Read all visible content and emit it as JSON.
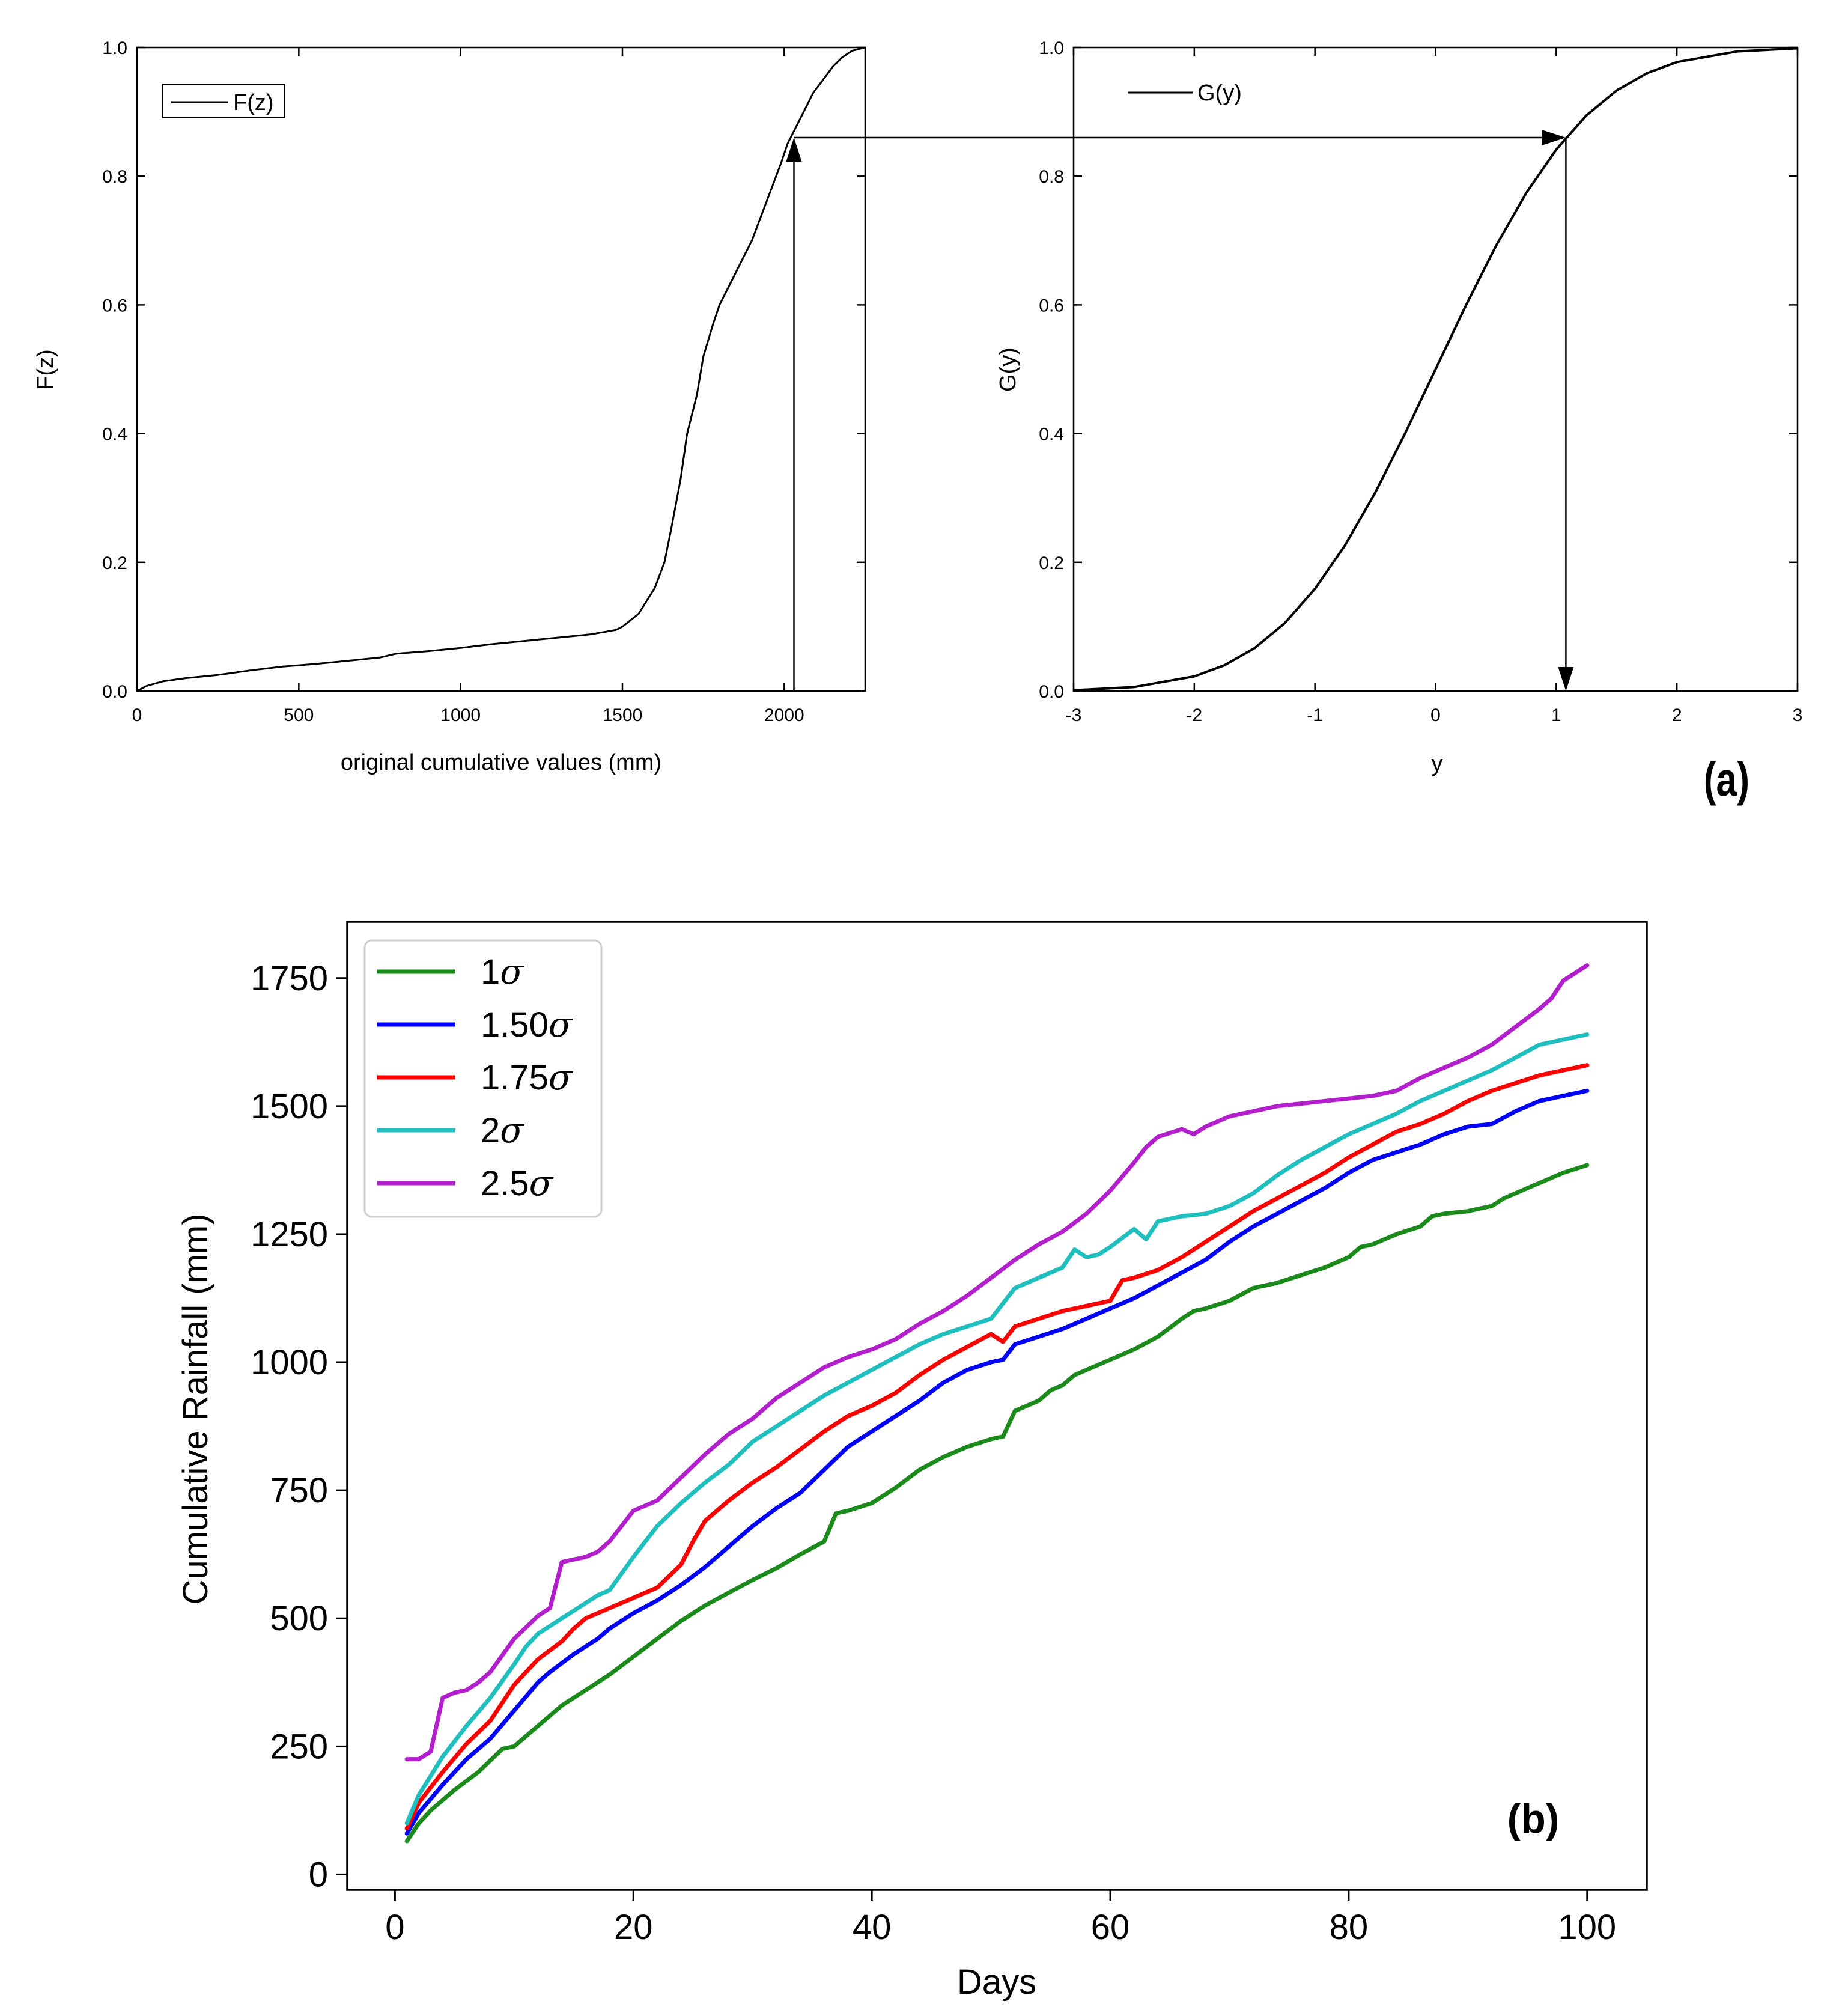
{
  "chart_data": [
    {
      "type": "line",
      "panel": "a-left",
      "xlabel": "original cumulative values (mm)",
      "ylabel": "F(z)",
      "xlim": [
        0,
        2250
      ],
      "ylim": [
        0,
        1.0
      ],
      "xticks": [
        "0",
        "500",
        "1000",
        "1500",
        "2000"
      ],
      "yticks": [
        "0.0",
        "0.2",
        "0.4",
        "0.6",
        "0.8",
        "1.0"
      ],
      "legend": "top-left",
      "series": [
        {
          "name": "F(z)",
          "color": "#000000",
          "x": [
            0,
            30,
            80,
            150,
            250,
            350,
            450,
            550,
            650,
            750,
            800,
            900,
            1000,
            1100,
            1200,
            1300,
            1400,
            1480,
            1500,
            1550,
            1600,
            1630,
            1650,
            1680,
            1700,
            1730,
            1750,
            1780,
            1800,
            1830,
            1860,
            1900,
            1930,
            1960,
            1990,
            2010,
            2030,
            2060,
            2090,
            2120,
            2150,
            2180,
            2210,
            2250
          ],
          "y": [
            0.0,
            0.008,
            0.015,
            0.02,
            0.025,
            0.032,
            0.038,
            0.042,
            0.047,
            0.052,
            0.058,
            0.062,
            0.067,
            0.073,
            0.078,
            0.083,
            0.088,
            0.095,
            0.1,
            0.12,
            0.16,
            0.2,
            0.25,
            0.33,
            0.4,
            0.46,
            0.52,
            0.57,
            0.6,
            0.63,
            0.66,
            0.7,
            0.74,
            0.78,
            0.82,
            0.85,
            0.87,
            0.9,
            0.93,
            0.95,
            0.97,
            0.985,
            0.995,
            1.0
          ]
        }
      ],
      "annotation_x": 2030,
      "annotation_level": 0.86
    },
    {
      "type": "line",
      "panel": "a-right",
      "xlabel": "y",
      "ylabel": "G(y)",
      "xlim": [
        -3,
        3
      ],
      "ylim": [
        0,
        1.0
      ],
      "xticks": [
        "-3",
        "-2",
        "-1",
        "0",
        "1",
        "2",
        "3"
      ],
      "yticks": [
        "0.0",
        "0.2",
        "0.4",
        "0.6",
        "0.8",
        "1.0"
      ],
      "legend": "top-left",
      "series": [
        {
          "name": "G(y)",
          "color": "#000000",
          "x": [
            -3.0,
            -2.5,
            -2.0,
            -1.75,
            -1.5,
            -1.25,
            -1.0,
            -0.75,
            -0.5,
            -0.25,
            0.0,
            0.25,
            0.5,
            0.75,
            1.0,
            1.25,
            1.5,
            1.75,
            2.0,
            2.5,
            3.0
          ],
          "y": [
            0.0013,
            0.0062,
            0.0228,
            0.0401,
            0.0668,
            0.1056,
            0.1587,
            0.2266,
            0.3085,
            0.4013,
            0.5,
            0.5987,
            0.6915,
            0.7734,
            0.8413,
            0.8944,
            0.9332,
            0.9599,
            0.9772,
            0.9938,
            0.9987
          ]
        }
      ],
      "annotation_x": 1.08,
      "annotation_level": 0.86
    },
    {
      "type": "line",
      "panel": "b",
      "xlabel": "Days",
      "ylabel": "Cumulative Rainfall (mm)",
      "xlim": [
        -4,
        105
      ],
      "ylim": [
        -30,
        1860
      ],
      "xticks": [
        "0",
        "20",
        "40",
        "60",
        "80",
        "100"
      ],
      "yticks": [
        "0",
        "250",
        "500",
        "750",
        "1000",
        "1250",
        "1500",
        "1750"
      ],
      "legend": "top-left",
      "series": [
        {
          "name": "1σ",
          "label_main": "1",
          "color": "#1a8a1a",
          "x": [
            1,
            2,
            3,
            5,
            7,
            9,
            10,
            12,
            14,
            16,
            18,
            20,
            22,
            24,
            26,
            28,
            30,
            32,
            34,
            36,
            37,
            38,
            40,
            42,
            44,
            46,
            48,
            50,
            51,
            52,
            54,
            55,
            56,
            57,
            58,
            59,
            60,
            62,
            64,
            66,
            67,
            68,
            70,
            72,
            74,
            76,
            78,
            80,
            81,
            82,
            84,
            86,
            87,
            88,
            90,
            92,
            93,
            95,
            97,
            98,
            100
          ],
          "y": [
            65,
            100,
            125,
            165,
            200,
            245,
            250,
            290,
            330,
            360,
            390,
            425,
            460,
            495,
            525,
            550,
            575,
            598,
            625,
            650,
            705,
            710,
            725,
            755,
            790,
            815,
            835,
            850,
            855,
            905,
            925,
            945,
            955,
            975,
            985,
            995,
            1005,
            1025,
            1050,
            1085,
            1100,
            1105,
            1120,
            1145,
            1155,
            1170,
            1185,
            1205,
            1225,
            1230,
            1250,
            1265,
            1285,
            1290,
            1295,
            1305,
            1320,
            1340,
            1360,
            1370,
            1385
          ]
        },
        {
          "name": "1.50σ",
          "label_main": "1.50",
          "color": "#0000ff",
          "x": [
            1,
            2,
            4,
            6,
            8,
            10,
            12,
            13,
            15,
            17,
            18,
            20,
            22,
            24,
            26,
            28,
            30,
            32,
            34,
            36,
            38,
            40,
            42,
            44,
            46,
            48,
            50,
            51,
            52,
            54,
            56,
            58,
            60,
            62,
            64,
            66,
            68,
            70,
            72,
            74,
            76,
            78,
            80,
            82,
            84,
            86,
            88,
            90,
            92,
            94,
            96,
            98,
            100
          ],
          "y": [
            80,
            120,
            175,
            225,
            265,
            320,
            375,
            395,
            430,
            460,
            480,
            510,
            535,
            565,
            600,
            640,
            680,
            715,
            745,
            790,
            835,
            865,
            895,
            925,
            960,
            985,
            1000,
            1005,
            1035,
            1050,
            1065,
            1085,
            1105,
            1125,
            1150,
            1175,
            1200,
            1235,
            1265,
            1290,
            1315,
            1340,
            1370,
            1395,
            1410,
            1425,
            1445,
            1460,
            1465,
            1490,
            1510,
            1520,
            1530
          ]
        },
        {
          "name": "1.75σ",
          "label_main": "1.75",
          "color": "#ff0000",
          "x": [
            1,
            2,
            4,
            6,
            8,
            10,
            12,
            14,
            15,
            16,
            17,
            18,
            20,
            22,
            24,
            25,
            26,
            28,
            30,
            32,
            34,
            36,
            38,
            40,
            42,
            44,
            46,
            48,
            50,
            51,
            52,
            54,
            56,
            58,
            60,
            61,
            62,
            64,
            66,
            68,
            70,
            72,
            74,
            76,
            78,
            80,
            82,
            84,
            86,
            88,
            90,
            92,
            94,
            96,
            98,
            100
          ],
          "y": [
            90,
            140,
            200,
            255,
            300,
            370,
            420,
            455,
            480,
            500,
            510,
            520,
            540,
            560,
            605,
            650,
            690,
            730,
            765,
            795,
            830,
            865,
            895,
            915,
            940,
            975,
            1005,
            1030,
            1055,
            1040,
            1070,
            1085,
            1100,
            1110,
            1120,
            1160,
            1165,
            1180,
            1205,
            1235,
            1265,
            1295,
            1320,
            1345,
            1370,
            1400,
            1425,
            1450,
            1465,
            1485,
            1510,
            1530,
            1545,
            1560,
            1570,
            1580
          ]
        },
        {
          "name": "2σ",
          "label_main": "2",
          "color": "#1fbfbf",
          "x": [
            1,
            2,
            4,
            6,
            8,
            10,
            11,
            12,
            14,
            16,
            17,
            18,
            20,
            22,
            24,
            26,
            28,
            30,
            32,
            34,
            36,
            38,
            40,
            42,
            44,
            46,
            48,
            50,
            51,
            52,
            54,
            56,
            57,
            58,
            59,
            60,
            62,
            63,
            64,
            66,
            68,
            70,
            72,
            74,
            76,
            78,
            80,
            82,
            84,
            86,
            88,
            90,
            92,
            94,
            96,
            98,
            100
          ],
          "y": [
            100,
            155,
            230,
            290,
            345,
            410,
            445,
            470,
            500,
            530,
            545,
            555,
            620,
            680,
            725,
            765,
            800,
            845,
            875,
            905,
            935,
            960,
            985,
            1010,
            1035,
            1055,
            1070,
            1085,
            1115,
            1145,
            1165,
            1185,
            1220,
            1205,
            1210,
            1225,
            1260,
            1240,
            1275,
            1285,
            1290,
            1305,
            1330,
            1365,
            1395,
            1420,
            1445,
            1465,
            1485,
            1510,
            1530,
            1550,
            1570,
            1595,
            1620,
            1630,
            1640
          ]
        },
        {
          "name": "2.5σ",
          "label_main": "2.5",
          "color": "#b31fcc",
          "x": [
            1,
            2,
            3,
            4,
            5,
            6,
            7,
            8,
            10,
            12,
            13,
            14,
            15,
            16,
            17,
            18,
            20,
            22,
            24,
            26,
            28,
            30,
            32,
            34,
            36,
            38,
            40,
            42,
            44,
            46,
            48,
            50,
            52,
            54,
            56,
            58,
            60,
            62,
            63,
            64,
            66,
            67,
            68,
            70,
            72,
            74,
            76,
            78,
            80,
            82,
            84,
            86,
            88,
            90,
            92,
            94,
            96,
            97,
            98,
            100
          ],
          "y": [
            225,
            225,
            240,
            345,
            355,
            360,
            375,
            395,
            460,
            505,
            520,
            610,
            615,
            620,
            630,
            650,
            710,
            730,
            775,
            820,
            860,
            890,
            930,
            960,
            990,
            1010,
            1025,
            1045,
            1075,
            1100,
            1130,
            1165,
            1200,
            1230,
            1255,
            1290,
            1335,
            1390,
            1420,
            1440,
            1455,
            1445,
            1460,
            1480,
            1490,
            1500,
            1505,
            1510,
            1515,
            1520,
            1530,
            1555,
            1575,
            1595,
            1620,
            1655,
            1690,
            1710,
            1745,
            1775
          ]
        }
      ]
    }
  ],
  "panel_labels": {
    "a": "(a)",
    "b": "(b)"
  },
  "legend_sigma": "σ"
}
